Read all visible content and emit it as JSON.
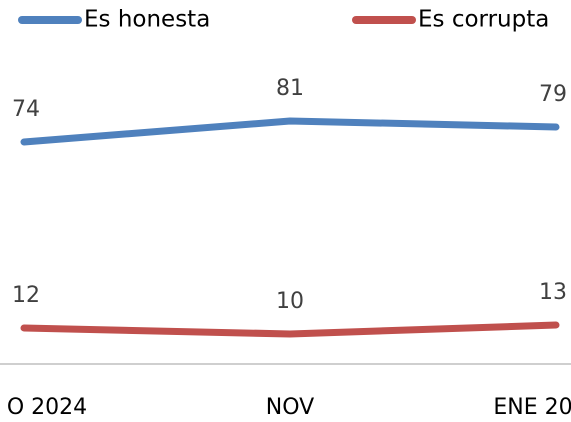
{
  "chart_data": {
    "type": "line",
    "categories": [
      "O 2024",
      "NOV",
      "ENE 20"
    ],
    "series": [
      {
        "name": "Es honesta",
        "color": "#4f81bd",
        "values": [
          74,
          81,
          79
        ]
      },
      {
        "name": "Es corrupta",
        "color": "#c0504d",
        "values": [
          12,
          10,
          13
        ]
      }
    ],
    "ylim": [
      0,
      100
    ]
  }
}
